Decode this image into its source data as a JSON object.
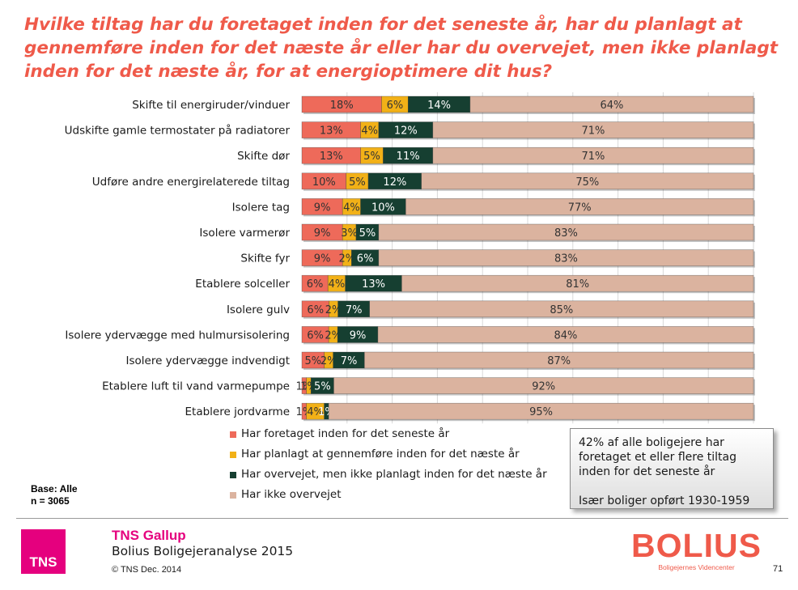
{
  "title": "Hvilke tiltag har du foretaget inden for det seneste år, har du planlagt at gennemføre inden for det næste år eller har du overvejet, men ikke planlagt inden for det næste år, for at energioptimere dit hus?",
  "chart_data": {
    "type": "bar",
    "orientation": "horizontal",
    "stacked": true,
    "title": "Hvilke tiltag har du foretaget inden for det seneste år, har du planlagt at gennemføre inden for det næste år eller har du overvejet, men ikke planlagt inden for det næste år, for at energioptimere dit hus?",
    "xlim": [
      0,
      100
    ],
    "unit": "%",
    "grid": true,
    "legend_position": "bottom",
    "categories": [
      "Skifte til energiruder/vinduer",
      "Udskifte gamle termostater på radiatorer",
      "Skifte dør",
      "Udføre andre energirelaterede tiltag",
      "Isolere tag",
      "Isolere varmerør",
      "Skifte fyr",
      "Etablere solceller",
      "Isolere gulv",
      "Isolere ydervægge med hulmursisolering",
      "Isolere ydervægge indvendigt",
      "Etablere luft til vand varmepumpe",
      "Etablere jordvarme"
    ],
    "series": [
      {
        "name": "Har foretaget inden for det seneste år",
        "color": "#ee6a5a",
        "values": [
          18,
          13,
          13,
          10,
          9,
          9,
          9,
          6,
          6,
          6,
          5,
          1,
          1
        ]
      },
      {
        "name": "Har planlagt at gennemføre inden for det næste år",
        "color": "#f2b117",
        "values": [
          6,
          4,
          5,
          5,
          4,
          3,
          2,
          4,
          2,
          2,
          2,
          1,
          4
        ]
      },
      {
        "name": "Har overvejet, men ikke planlagt inden for det næste år",
        "color": "#163f31",
        "values": [
          14,
          12,
          11,
          12,
          10,
          5,
          6,
          13,
          7,
          9,
          7,
          5,
          1
        ]
      },
      {
        "name": "Har ikke overvejet",
        "color": "#dbb39f",
        "values": [
          64,
          71,
          71,
          75,
          77,
          83,
          83,
          81,
          85,
          84,
          87,
          92,
          95
        ]
      }
    ]
  },
  "base": {
    "line1": "Base: Alle",
    "line2": "n = 3065"
  },
  "callout": {
    "text": "42% af alle boligejere har foretaget et eller flere tiltag inden for det seneste år",
    "sub": "Især boliger opført 1930-1959"
  },
  "footer": {
    "brand": "TNS Gallup",
    "report": "Bolius Boligejeranalyse 2015",
    "copyright": "© TNS Dec. 2014",
    "tns_logo_text": "TNS",
    "page_number": "71",
    "tns_color": "#e5007e"
  },
  "bolius": {
    "wordmark": "BOLIUS",
    "tagline": "Boligejernes Videncenter",
    "color": "#ef5a4a"
  }
}
